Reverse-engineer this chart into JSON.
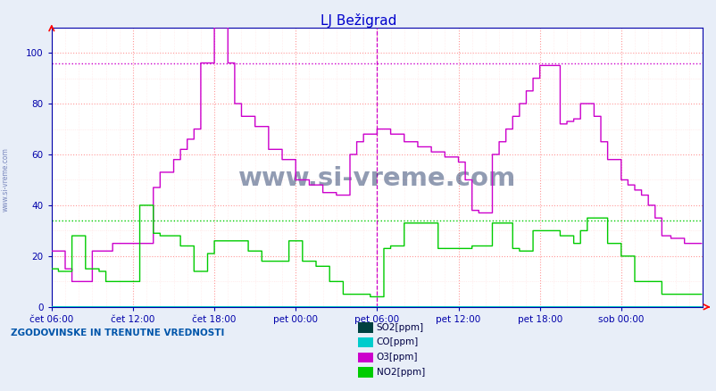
{
  "title": "LJ Bežigrad",
  "title_color": "#0000cc",
  "bg_color": "#e8eef8",
  "plot_bg_color": "#ffffff",
  "ylim": [
    0,
    110
  ],
  "yticks": [
    0,
    20,
    40,
    60,
    80,
    100
  ],
  "xtick_labels": [
    "čet 06:00",
    "čet 12:00",
    "čet 18:00",
    "pet 00:00",
    "pet 06:00",
    "pet 12:00",
    "pet 18:00",
    "sob 00:00"
  ],
  "n_points": 576,
  "legend_text": "ZGODOVINSKE IN TRENUTNE VREDNOSTI",
  "legend_items": [
    "SO2[ppm]",
    "CO[ppm]",
    "O3[ppm]",
    "NO2[ppm]"
  ],
  "legend_colors": [
    "#004040",
    "#00cccc",
    "#cc00cc",
    "#00cc00"
  ],
  "watermark": "www.si-vreme.com",
  "watermark_color": "#1a3060",
  "hline_o3_val": 96,
  "hline_no2_val": 34,
  "hline_color_o3": "#cc00cc",
  "hline_color_no2": "#00cc00",
  "vline_x": 288,
  "vline_color": "#cc00cc",
  "grid_major_color": "#ff9999",
  "grid_minor_color": "#ffdddd",
  "axis_color": "#0000aa",
  "so2_color": "#004040",
  "co_color": "#00cccc",
  "o3_color": "#cc00cc",
  "no2_color": "#00cc00",
  "o3_breakpoints": [
    [
      0,
      22
    ],
    [
      6,
      22
    ],
    [
      12,
      15
    ],
    [
      18,
      10
    ],
    [
      24,
      10
    ],
    [
      36,
      22
    ],
    [
      48,
      22
    ],
    [
      54,
      25
    ],
    [
      72,
      25
    ],
    [
      90,
      47
    ],
    [
      96,
      53
    ],
    [
      108,
      58
    ],
    [
      114,
      62
    ],
    [
      120,
      66
    ],
    [
      126,
      70
    ],
    [
      132,
      96
    ],
    [
      138,
      96
    ],
    [
      144,
      110
    ],
    [
      150,
      110
    ],
    [
      156,
      96
    ],
    [
      162,
      80
    ],
    [
      168,
      75
    ],
    [
      180,
      71
    ],
    [
      192,
      62
    ],
    [
      204,
      58
    ],
    [
      216,
      50
    ],
    [
      228,
      48
    ],
    [
      240,
      45
    ],
    [
      252,
      44
    ],
    [
      264,
      60
    ],
    [
      270,
      65
    ],
    [
      276,
      68
    ],
    [
      288,
      70
    ],
    [
      300,
      68
    ],
    [
      312,
      65
    ],
    [
      324,
      63
    ],
    [
      336,
      61
    ],
    [
      348,
      59
    ],
    [
      360,
      57
    ],
    [
      366,
      50
    ],
    [
      372,
      38
    ],
    [
      378,
      37
    ],
    [
      384,
      37
    ],
    [
      390,
      60
    ],
    [
      396,
      65
    ],
    [
      402,
      70
    ],
    [
      408,
      75
    ],
    [
      414,
      80
    ],
    [
      420,
      85
    ],
    [
      426,
      90
    ],
    [
      432,
      95
    ],
    [
      438,
      95
    ],
    [
      444,
      95
    ],
    [
      450,
      72
    ],
    [
      456,
      73
    ],
    [
      462,
      74
    ],
    [
      468,
      80
    ],
    [
      474,
      80
    ],
    [
      480,
      75
    ],
    [
      486,
      65
    ],
    [
      492,
      58
    ],
    [
      504,
      50
    ],
    [
      510,
      48
    ],
    [
      516,
      46
    ],
    [
      522,
      44
    ],
    [
      528,
      40
    ],
    [
      534,
      35
    ],
    [
      540,
      28
    ],
    [
      548,
      27
    ],
    [
      560,
      25
    ],
    [
      570,
      25
    ],
    [
      575,
      25
    ]
  ],
  "no2_breakpoints": [
    [
      0,
      15
    ],
    [
      6,
      14
    ],
    [
      12,
      14
    ],
    [
      18,
      28
    ],
    [
      24,
      28
    ],
    [
      30,
      15
    ],
    [
      36,
      15
    ],
    [
      42,
      14
    ],
    [
      48,
      10
    ],
    [
      54,
      10
    ],
    [
      60,
      10
    ],
    [
      66,
      10
    ],
    [
      72,
      10
    ],
    [
      78,
      40
    ],
    [
      84,
      40
    ],
    [
      90,
      29
    ],
    [
      96,
      28
    ],
    [
      108,
      28
    ],
    [
      114,
      24
    ],
    [
      120,
      24
    ],
    [
      126,
      14
    ],
    [
      132,
      14
    ],
    [
      138,
      21
    ],
    [
      144,
      26
    ],
    [
      150,
      26
    ],
    [
      162,
      26
    ],
    [
      174,
      22
    ],
    [
      186,
      18
    ],
    [
      198,
      18
    ],
    [
      210,
      26
    ],
    [
      222,
      18
    ],
    [
      234,
      16
    ],
    [
      246,
      10
    ],
    [
      258,
      5
    ],
    [
      264,
      5
    ],
    [
      270,
      5
    ],
    [
      276,
      5
    ],
    [
      282,
      4
    ],
    [
      288,
      4
    ],
    [
      294,
      23
    ],
    [
      300,
      24
    ],
    [
      306,
      24
    ],
    [
      312,
      33
    ],
    [
      318,
      33
    ],
    [
      330,
      33
    ],
    [
      342,
      23
    ],
    [
      354,
      23
    ],
    [
      360,
      23
    ],
    [
      366,
      23
    ],
    [
      372,
      24
    ],
    [
      378,
      24
    ],
    [
      384,
      24
    ],
    [
      390,
      33
    ],
    [
      396,
      33
    ],
    [
      408,
      23
    ],
    [
      414,
      22
    ],
    [
      420,
      22
    ],
    [
      426,
      30
    ],
    [
      438,
      30
    ],
    [
      450,
      28
    ],
    [
      462,
      25
    ],
    [
      468,
      30
    ],
    [
      474,
      35
    ],
    [
      480,
      35
    ],
    [
      492,
      25
    ],
    [
      504,
      20
    ],
    [
      510,
      20
    ],
    [
      516,
      10
    ],
    [
      522,
      10
    ],
    [
      528,
      10
    ],
    [
      534,
      10
    ],
    [
      540,
      5
    ],
    [
      546,
      5
    ],
    [
      552,
      5
    ],
    [
      558,
      5
    ],
    [
      564,
      5
    ],
    [
      570,
      5
    ],
    [
      575,
      5
    ]
  ]
}
